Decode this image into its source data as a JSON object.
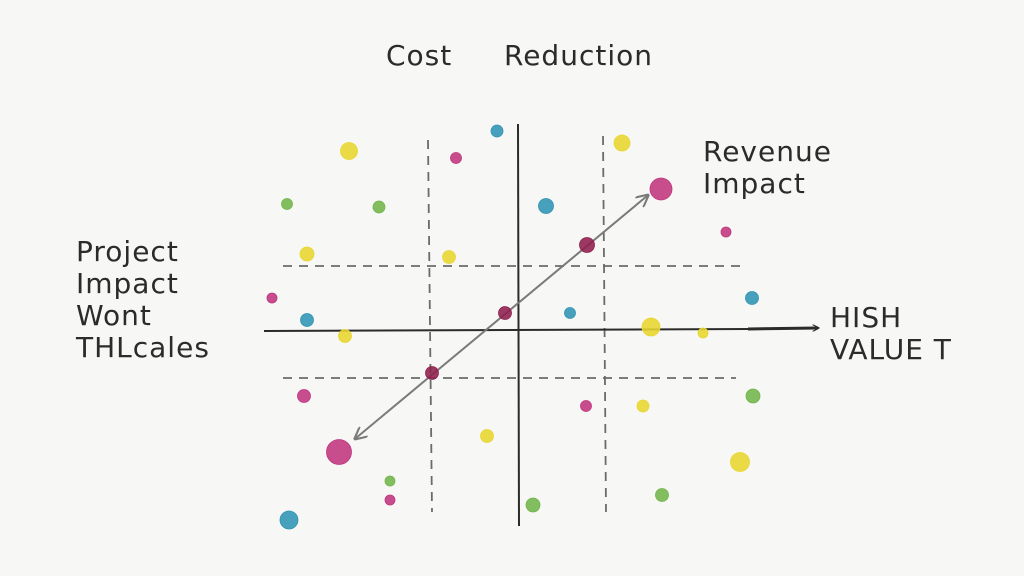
{
  "labels": {
    "top_left": "Cost",
    "top_right": "Reduction",
    "upper_right": [
      "Revenue",
      "Impact"
    ],
    "left": [
      "Project",
      "Impact",
      "Wont",
      "THLcales"
    ],
    "right": [
      "HISH",
      "VALUE T"
    ]
  },
  "colors": {
    "ink": "#2b2b2b",
    "dashes": "#6b6b6b",
    "trend": "#7a7a7a",
    "magenta": "#c0357e",
    "burgundy": "#8e1f4e",
    "yellow": "#e8d62e",
    "green": "#72b54a",
    "teal": "#2f94b4"
  },
  "markers": [
    {
      "role": "trend",
      "color": "burgundy"
    },
    {
      "role": "trend",
      "color": "burgundy"
    },
    {
      "role": "trend",
      "color": "burgundy"
    },
    {
      "role": "trend",
      "color": "magenta"
    },
    {
      "role": "trend",
      "color": "magenta"
    },
    {
      "role": "scatter",
      "color": "yellow"
    },
    {
      "role": "scatter",
      "color": "magenta"
    },
    {
      "role": "scatter",
      "color": "teal"
    },
    {
      "role": "scatter",
      "color": "yellow"
    },
    {
      "role": "scatter",
      "color": "green"
    },
    {
      "role": "scatter",
      "color": "green"
    },
    {
      "role": "scatter",
      "color": "teal"
    },
    {
      "role": "scatter",
      "color": "magenta"
    },
    {
      "role": "scatter",
      "color": "yellow"
    },
    {
      "role": "scatter",
      "color": "yellow"
    },
    {
      "role": "scatter",
      "color": "magenta"
    },
    {
      "role": "scatter",
      "color": "teal"
    },
    {
      "role": "scatter",
      "color": "teal"
    },
    {
      "role": "scatter",
      "color": "teal"
    },
    {
      "role": "scatter",
      "color": "yellow"
    },
    {
      "role": "scatter",
      "color": "yellow"
    },
    {
      "role": "scatter",
      "color": "yellow"
    },
    {
      "role": "scatter",
      "color": "magenta"
    },
    {
      "role": "scatter",
      "color": "magenta"
    },
    {
      "role": "scatter",
      "color": "yellow"
    },
    {
      "role": "scatter",
      "color": "yellow"
    },
    {
      "role": "scatter",
      "color": "green"
    },
    {
      "role": "scatter",
      "color": "yellow"
    },
    {
      "role": "scatter",
      "color": "green"
    },
    {
      "role": "scatter",
      "color": "magenta"
    },
    {
      "role": "scatter",
      "color": "green"
    },
    {
      "role": "scatter",
      "color": "green"
    },
    {
      "role": "scatter",
      "color": "teal"
    }
  ]
}
